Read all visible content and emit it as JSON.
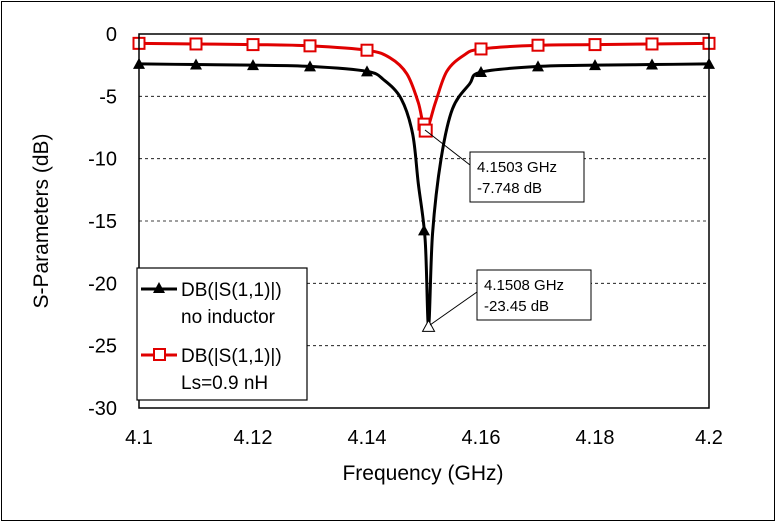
{
  "chart_data": {
    "type": "line",
    "title": "",
    "xlabel": "Frequency (GHz)",
    "ylabel": "S-Parameters (dB)",
    "xlim": [
      4.1,
      4.2
    ],
    "ylim": [
      -30,
      0
    ],
    "xticks": [
      "4.1",
      "4.12",
      "4.14",
      "4.16",
      "4.18",
      "4.2"
    ],
    "yticks": [
      "0",
      "-5",
      "-10",
      "-15",
      "-20",
      "-25",
      "-30"
    ],
    "grid": "dashed horizontal",
    "legend_position": "lower-left",
    "series": [
      {
        "name": "DB(|S(1,1)|)",
        "name_line2": "no inductor",
        "color": "#000000",
        "marker": "triangle",
        "x": [
          4.1,
          4.11,
          4.12,
          4.13,
          4.14,
          4.143,
          4.146,
          4.148,
          4.149,
          4.1502,
          4.1508,
          4.1515,
          4.153,
          4.155,
          4.158,
          4.16,
          4.17,
          4.18,
          4.19,
          4.2
        ],
        "y": [
          -2.4,
          -2.45,
          -2.5,
          -2.6,
          -3.0,
          -3.7,
          -5.2,
          -8.0,
          -12.0,
          -16.5,
          -23.45,
          -16.0,
          -10.0,
          -6.0,
          -4.0,
          -3.05,
          -2.6,
          -2.5,
          -2.45,
          -2.4
        ]
      },
      {
        "name": "DB(|S(1,1)|)",
        "name_line2": "Ls=0.9 nH",
        "color": "#e00000",
        "marker": "square",
        "x": [
          4.1,
          4.11,
          4.12,
          4.13,
          4.14,
          4.144,
          4.147,
          4.149,
          4.1503,
          4.152,
          4.154,
          4.157,
          4.16,
          4.17,
          4.18,
          4.19,
          4.2
        ],
        "y": [
          -0.75,
          -0.8,
          -0.85,
          -0.95,
          -1.3,
          -1.9,
          -3.2,
          -5.5,
          -7.748,
          -5.5,
          -3.0,
          -1.7,
          -1.2,
          -0.9,
          -0.85,
          -0.8,
          -0.75
        ]
      }
    ],
    "markers_x": [
      4.1,
      4.11,
      4.12,
      4.13,
      4.14,
      4.15,
      4.16,
      4.17,
      4.18,
      4.19,
      4.2
    ],
    "annotations": [
      {
        "line1": "4.1503 GHz",
        "line2": "-7.748 dB",
        "x": 4.1503,
        "y": -7.748
      },
      {
        "line1": "4.1508 GHz",
        "line2": "-23.45 dB",
        "x": 4.1508,
        "y": -23.45
      }
    ]
  }
}
